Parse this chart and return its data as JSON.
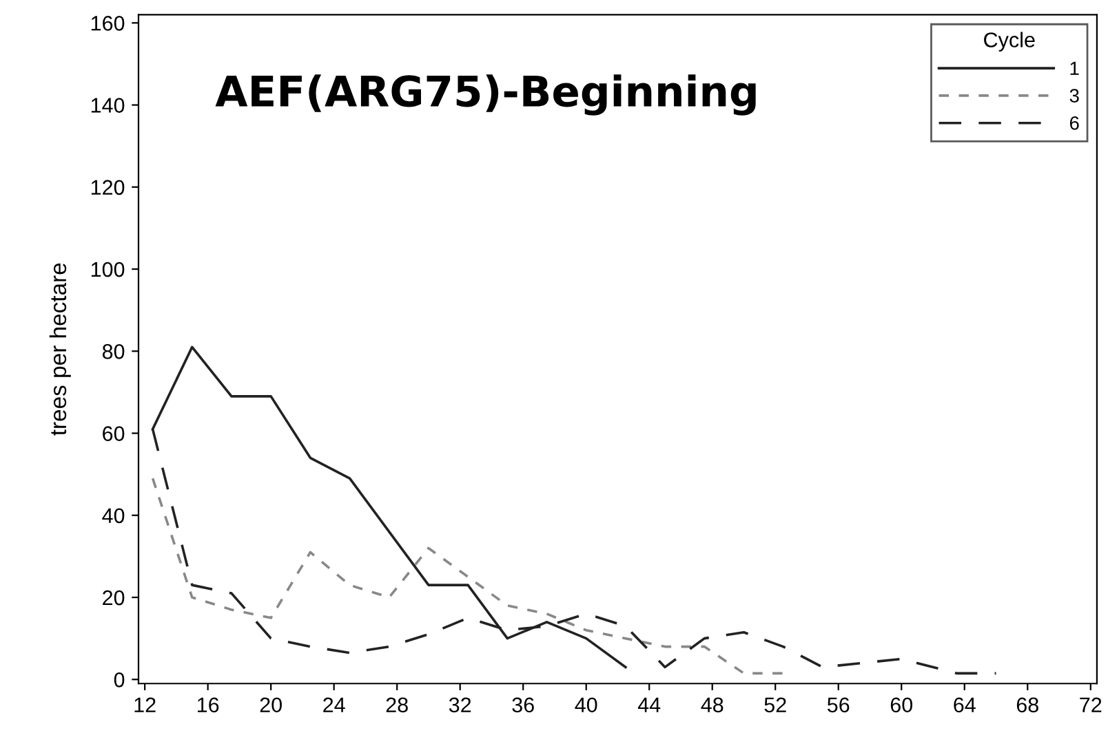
{
  "chart_data": {
    "type": "line",
    "title": "AEF(ARG75)-Beginning",
    "ylabel": "trees per hectare",
    "legend_title": "Cycle",
    "legend": "top right",
    "grid": false,
    "marker": "none",
    "xlim": [
      11.6,
      72.4
    ],
    "xticks": [
      12,
      16,
      20,
      24,
      28,
      32,
      36,
      40,
      44,
      48,
      52,
      56,
      60,
      64,
      68,
      72
    ],
    "ylim": [
      -1,
      162
    ],
    "yticks": [
      0,
      20,
      40,
      60,
      80,
      100,
      120,
      140,
      160
    ],
    "series": [
      {
        "name": "1",
        "color": "#222222",
        "line_style": "solid",
        "x": [
          12.5,
          15,
          17.5,
          20,
          22.5,
          25,
          30,
          32.5,
          35,
          37.5,
          40,
          42.5
        ],
        "values": [
          61,
          81,
          69,
          69,
          54,
          49,
          23,
          23,
          10,
          14,
          10,
          3
        ]
      },
      {
        "name": "3",
        "color": "#888888",
        "line_style": "dashed",
        "x": [
          12.5,
          15,
          17.5,
          20,
          22.5,
          25,
          27.5,
          30,
          32.5,
          35,
          37.5,
          40,
          42.5,
          45,
          47.5,
          50,
          52.5
        ],
        "values": [
          49,
          20,
          17,
          15,
          31,
          23,
          20,
          32,
          25,
          18,
          16,
          12,
          10,
          8,
          8,
          1.5,
          1.5
        ]
      },
      {
        "name": "6",
        "color": "#222222",
        "line_style": "dashed",
        "x": [
          12.5,
          15,
          17.5,
          20,
          22.5,
          25,
          27.5,
          30,
          32.5,
          35,
          37.5,
          40,
          42.5,
          45,
          47.5,
          50,
          52.5,
          55,
          60,
          63.5,
          66
        ],
        "values": [
          61,
          23,
          21,
          10,
          8,
          6.5,
          8,
          11,
          15,
          12,
          13,
          16,
          13,
          3,
          10,
          11.5,
          8,
          3,
          5,
          1.5,
          1.5
        ]
      }
    ]
  }
}
